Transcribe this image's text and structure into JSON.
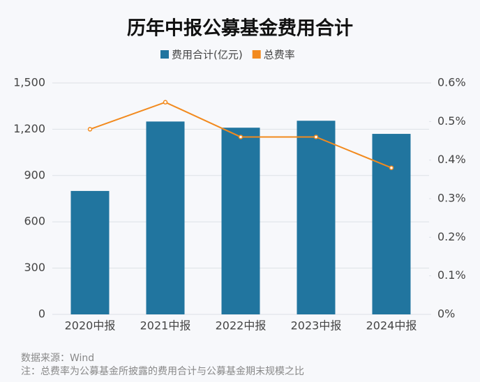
{
  "chart_data": {
    "type": "bar",
    "title": "历年中报公募基金费用合计",
    "categories": [
      "2020中报",
      "2021中报",
      "2022中报",
      "2023中报",
      "2024中报"
    ],
    "series": [
      {
        "name": "费用合计(亿元)",
        "type": "bar",
        "color": "#21759f",
        "values": [
          800,
          1250,
          1210,
          1255,
          1170
        ]
      },
      {
        "name": "总费率",
        "type": "line",
        "axis": "y2",
        "color": "#f28a1e",
        "values": [
          0.48,
          0.55,
          0.46,
          0.46,
          0.38
        ]
      }
    ],
    "ylim": [
      0,
      1500
    ],
    "yticks": [
      0,
      300,
      600,
      900,
      {
        "value": 1200,
        "label": "1,200"
      },
      {
        "value": 1500,
        "label": "1,500"
      }
    ],
    "y2lim": [
      0,
      0.6
    ],
    "y2ticks": [
      {
        "value": 0,
        "label": "0%"
      },
      {
        "value": 0.1,
        "label": "0.1%"
      },
      {
        "value": 0.2,
        "label": "0.2%"
      },
      {
        "value": 0.3,
        "label": "0.3%"
      },
      {
        "value": 0.4,
        "label": "0.4%"
      },
      {
        "value": 0.5,
        "label": "0.5%"
      },
      {
        "value": 0.6,
        "label": "0.6%"
      }
    ],
    "grid": true,
    "legend": "top",
    "source": "数据来源：Wind",
    "note": "注：总费率为公募基金所披露的费用合计与公募基金期末规模之比"
  }
}
